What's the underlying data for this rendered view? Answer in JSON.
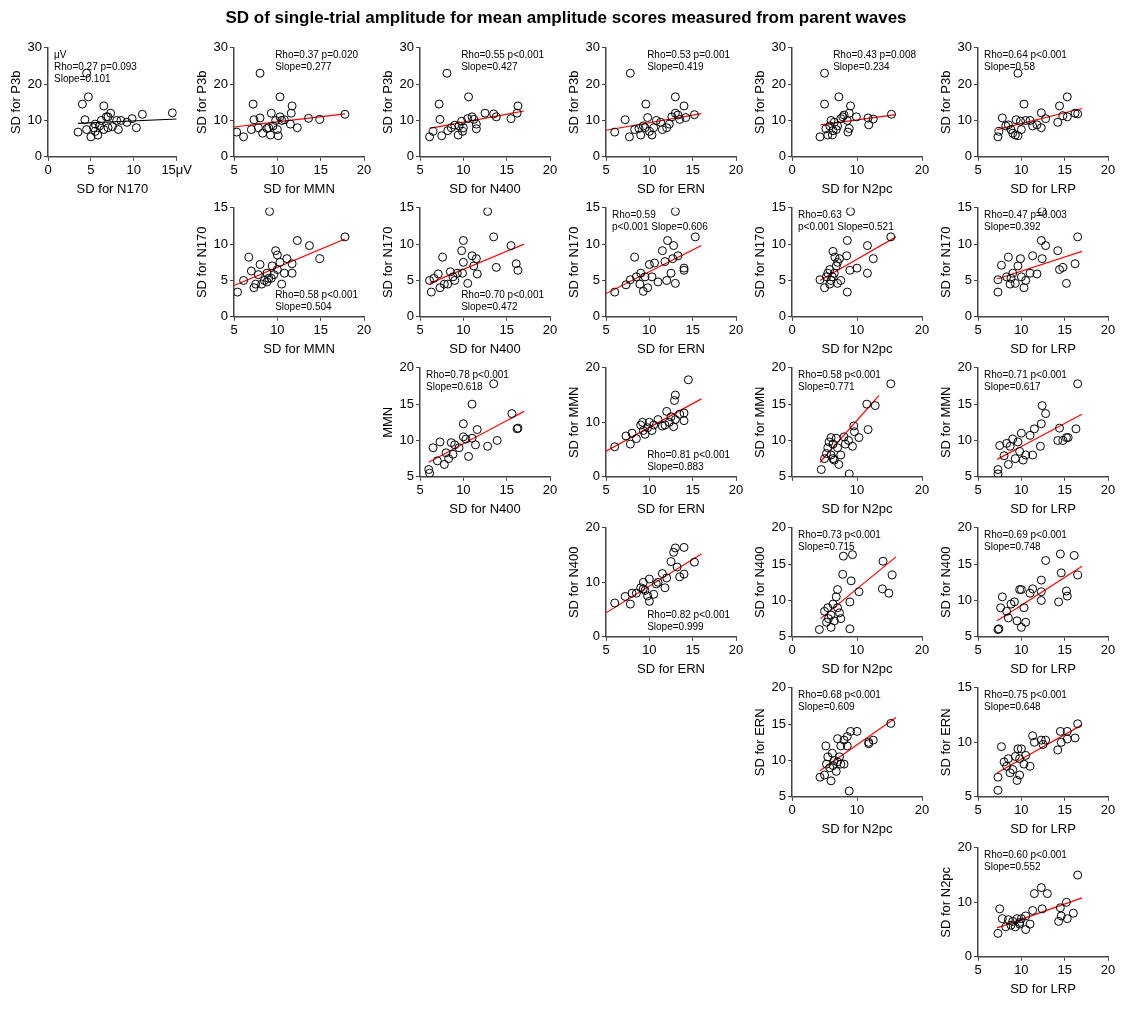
{
  "chart_data": [
    {
      "type": "scatter",
      "xlabel": "SD for N170",
      "ylabel": "SD for P3b",
      "xlim": [
        0,
        15
      ],
      "xticks": [
        0,
        5,
        10,
        {
          "value": 15,
          "label": "15μV"
        }
      ],
      "ylim": [
        0,
        30
      ],
      "yticks": [
        0,
        10,
        20,
        30
      ],
      "annotations": [
        "μV",
        "Rho=0.27 p=0.093",
        "Slope=0.101"
      ],
      "series": [
        {
          "color": "#000000",
          "marker": "circle",
          "x": [
            4.5,
            4.7,
            4,
            6.5,
            4.3,
            3.5,
            4.5,
            5,
            5.3,
            5.5,
            5.8,
            6,
            6.2,
            6.8,
            7,
            7.3,
            7,
            7.5,
            8,
            8.2,
            8.5,
            9.2,
            9.8,
            10.3,
            11,
            14.5,
            5.5,
            6.5
          ],
          "values": [
            23,
            16.5,
            14.5,
            14,
            10.2,
            6.8,
            7.5,
            5.5,
            8,
            7,
            6,
            8.5,
            10,
            11,
            11,
            12,
            8,
            8.3,
            10,
            7.5,
            10,
            9.5,
            10.5,
            8,
            11.7,
            12.1,
            9,
            7.5
          ]
        },
        {
          "type": "line",
          "color": "#000000",
          "x": [
            3.5,
            15
          ],
          "values": [
            9.2,
            10.4
          ]
        }
      ]
    },
    {
      "type": "scatter",
      "xlabel": "SD for MMN",
      "ylabel": "SD for P3b",
      "xlim": [
        5,
        20
      ],
      "xticks": [
        5,
        10,
        15,
        20
      ],
      "ylim": [
        0,
        30
      ],
      "yticks": [
        0,
        10,
        20,
        30
      ],
      "annotations": [
        "Rho=0.37 p=0.020",
        "Slope=0.277"
      ],
      "series": [
        {
          "color": "#000000",
          "marker": "circle",
          "x": [
            8,
            7.2,
            10.3,
            11.7,
            11.6,
            9.3,
            5.3,
            6.1,
            7,
            7.3,
            7.8,
            8,
            8.3,
            8.8,
            9.2,
            9.5,
            9.8,
            10,
            10.1,
            10.3,
            10.5,
            10.8,
            11.5,
            12.3,
            13.6,
            14.9,
            17.8,
            9
          ],
          "values": [
            23,
            14.5,
            16.5,
            14,
            12,
            12,
            6.8,
            5.5,
            7.5,
            10.2,
            8,
            10.7,
            6.5,
            7.8,
            6,
            8.5,
            10,
            7.5,
            5.8,
            11,
            10,
            10.2,
            9,
            8,
            10.6,
            10.3,
            11.7,
            8
          ]
        },
        {
          "type": "line",
          "color": "#ff0000",
          "x": [
            5,
            17.8
          ],
          "values": [
            8.2,
            11.8
          ]
        }
      ]
    },
    {
      "type": "scatter",
      "xlabel": "SD for N400",
      "ylabel": "SD for P3b",
      "xlim": [
        5,
        20
      ],
      "xticks": [
        5,
        10,
        15,
        20
      ],
      "ylim": [
        0,
        30
      ],
      "yticks": [
        0,
        10,
        20,
        30
      ],
      "annotations": [
        "Rho=0.55 p<0.001",
        "Slope=0.427"
      ],
      "series": [
        {
          "color": "#000000",
          "marker": "circle",
          "x": [
            8.1,
            7.2,
            10.6,
            6.1,
            6.5,
            7.3,
            7.5,
            8.2,
            8.6,
            9,
            9.4,
            9.8,
            9.9,
            10,
            10.5,
            11,
            11.2,
            11.5,
            11.5,
            12.5,
            13.5,
            13.8,
            15.5,
            16.2,
            16.3,
            9.5
          ],
          "values": [
            23,
            14.5,
            16.5,
            5.5,
            7,
            10.3,
            5.8,
            7.2,
            8,
            8.7,
            6,
            9.8,
            7,
            8,
            10.5,
            11,
            10.3,
            9,
            7.7,
            12,
            11.8,
            11,
            10.5,
            12,
            14,
            8.5
          ]
        },
        {
          "type": "line",
          "color": "#ff0000",
          "x": [
            6.1,
            17
          ],
          "values": [
            7.8,
            12.6
          ]
        }
      ]
    },
    {
      "type": "scatter",
      "title": "SD of single-trial amplitude for mean amplitude scores measured from parent waves",
      "xlabel": "SD for ERN",
      "ylabel": "SD for P3b",
      "xlim": [
        5,
        20
      ],
      "xticks": [
        5,
        10,
        15,
        20
      ],
      "ylim": [
        0,
        30
      ],
      "yticks": [
        0,
        10,
        20,
        30
      ],
      "annotations": [
        "Rho=0.53 p=0.001",
        "Slope=0.419"
      ],
      "series": [
        {
          "color": "#000000",
          "marker": "circle",
          "x": [
            7.8,
            9.6,
            13,
            14,
            6,
            7.2,
            7.7,
            8.3,
            8.8,
            9,
            9.3,
            9.8,
            10,
            10.3,
            10.5,
            10.8,
            11.3,
            11.5,
            12,
            12.3,
            12.6,
            13,
            13.3,
            13.5,
            14.2,
            15.2,
            9.5
          ],
          "values": [
            23,
            14.5,
            16.5,
            14,
            6.8,
            10.2,
            5.5,
            7.5,
            7.8,
            6,
            8.5,
            10.8,
            7,
            6,
            8,
            10,
            9.5,
            7.5,
            8,
            9,
            11,
            12,
            11.5,
            10.3,
            10.8,
            11.6,
            8
          ]
        },
        {
          "type": "line",
          "color": "#ff0000",
          "x": [
            5,
            16
          ],
          "values": [
            7.3,
            11.9
          ]
        }
      ]
    },
    {
      "type": "scatter",
      "xlabel": "SD for N2pc",
      "ylabel": "SD for P3b",
      "xlim": [
        0,
        20
      ],
      "xticks": [
        0,
        10,
        20
      ],
      "ylim": [
        0,
        30
      ],
      "yticks": [
        0,
        10,
        20,
        30
      ],
      "annotations": [
        "Rho=0.43 p=0.008",
        "Slope=0.234"
      ],
      "series": [
        {
          "color": "#000000",
          "marker": "circle",
          "x": [
            5,
            5,
            7.2,
            9,
            8.8,
            4.3,
            5.2,
            5.5,
            5.8,
            6,
            6.2,
            6.5,
            6.8,
            7,
            7.5,
            7.8,
            8,
            8.5,
            8.8,
            8.6,
            9.9,
            11.7,
            11.8,
            12.5,
            15.3,
            6.3
          ],
          "values": [
            23,
            14.5,
            16.5,
            14,
            12,
            5.5,
            7.7,
            6,
            8.5,
            10,
            6,
            9.5,
            7.5,
            8.5,
            10.5,
            11,
            11.5,
            10,
            7.8,
            6.8,
            11,
            10.7,
            8.8,
            10.4,
            11.7,
            7.2
          ]
        },
        {
          "type": "line",
          "color": "#ff0000",
          "x": [
            4.4,
            16
          ],
          "values": [
            8.8,
            11.6
          ]
        }
      ]
    },
    {
      "type": "scatter",
      "xlabel": "SD for LRP",
      "ylabel": "SD for P3b",
      "xlim": [
        5,
        20
      ],
      "xticks": [
        5,
        10,
        15,
        20
      ],
      "ylim": [
        0,
        30
      ],
      "yticks": [
        0,
        10,
        20,
        30
      ],
      "annotations": [
        "Rho=0.64 p<0.001",
        "Slope=0.58"
      ],
      "series": [
        {
          "color": "#000000",
          "marker": "circle",
          "x": [
            9.6,
            10.3,
            15.3,
            14.4,
            7.3,
            7.4,
            7.8,
            8.2,
            8.5,
            8.8,
            9,
            9.3,
            9.4,
            9.6,
            9.9,
            10,
            10.5,
            11,
            11.3,
            11.8,
            12.3,
            12.3,
            12.8,
            14.2,
            14.8,
            15.3,
            16.2,
            16.5
          ],
          "values": [
            23,
            14.5,
            16.5,
            14,
            5.5,
            7,
            10.7,
            8.5,
            8.8,
            7.5,
            6.5,
            6,
            10.2,
            5.8,
            9.8,
            7.5,
            10,
            10,
            8.5,
            8.8,
            12.1,
            8,
            10.5,
            9.5,
            11.3,
            11,
            12,
            11.8
          ]
        },
        {
          "type": "line",
          "color": "#ff0000",
          "x": [
            7.2,
            17
          ],
          "values": [
            7.5,
            13.3
          ]
        }
      ]
    },
    {
      "type": "scatter",
      "xlabel": "SD for MMN",
      "ylabel": "SD for N170",
      "xlim": [
        5,
        20
      ],
      "xticks": [
        5,
        10,
        15,
        20
      ],
      "ylim": [
        0,
        15
      ],
      "yticks": [
        0,
        5,
        10,
        15
      ],
      "annotations": [
        "Rho=0.58 p<0.001",
        "Slope=0.504"
      ],
      "series": [
        {
          "color": "#000000",
          "marker": "circle",
          "x": [
            9.1,
            5.4,
            6.1,
            6.7,
            7,
            7.3,
            7.5,
            7.8,
            8,
            8.2,
            8.5,
            8.8,
            9,
            9.3,
            9.4,
            9.6,
            9.8,
            10,
            10,
            10.3,
            10.5,
            10.8,
            11.1,
            11.7,
            11.7,
            12.3,
            13.7,
            14.9,
            17.8,
            8.8
          ],
          "values": [
            14.5,
            3.4,
            5,
            8.2,
            6.3,
            4,
            4.5,
            5.8,
            7.2,
            4.5,
            5,
            4.8,
            5.3,
            5.3,
            7,
            5.8,
            9.1,
            6.5,
            8.5,
            7.5,
            4.5,
            6,
            8,
            6,
            7.3,
            10.5,
            9.8,
            8,
            11,
            6
          ]
        },
        {
          "type": "line",
          "color": "#ff0000",
          "x": [
            5,
            17.8
          ],
          "values": [
            4.3,
            10.7
          ]
        }
      ]
    },
    {
      "type": "scatter",
      "xlabel": "SD for N400",
      "ylabel": "SD for N170",
      "xlim": [
        5,
        20
      ],
      "xticks": [
        5,
        10,
        15,
        20
      ],
      "ylim": [
        0,
        15
      ],
      "yticks": [
        0,
        5,
        10,
        15
      ],
      "annotations": [
        "Rho=0.70 p<0.001",
        "Slope=0.472"
      ],
      "series": [
        {
          "color": "#000000",
          "marker": "circle",
          "x": [
            12.8,
            6.1,
            6.3,
            6.6,
            7.1,
            7.3,
            7.6,
            7.8,
            8.2,
            8.5,
            8.8,
            9,
            9.3,
            9.8,
            9.9,
            10,
            10,
            10.5,
            11,
            11.2,
            11.5,
            11.6,
            13.5,
            13.8,
            15.5,
            16.1,
            16.3
          ],
          "values": [
            14.5,
            5,
            3.4,
            5.3,
            5.9,
            4,
            8.2,
            4.5,
            4.5,
            6.2,
            5.5,
            5,
            6,
            9.1,
            6,
            10.5,
            7.5,
            4.6,
            8.4,
            7,
            8,
            5.9,
            11,
            6.8,
            9.8,
            7.3,
            6.4
          ]
        },
        {
          "type": "line",
          "color": "#ff0000",
          "x": [
            6.1,
            17
          ],
          "values": [
            4.6,
            10
          ]
        }
      ]
    },
    {
      "type": "scatter",
      "xlabel": "SD for ERN",
      "ylabel": "SD for N170",
      "xlim": [
        5,
        20
      ],
      "xticks": [
        5,
        10,
        15,
        20
      ],
      "ylim": [
        0,
        15
      ],
      "yticks": [
        0,
        5,
        10,
        15
      ],
      "annotations": [
        "Rho=0.59",
        "p<0.001 Slope=0.606"
      ],
      "series": [
        {
          "color": "#000000",
          "marker": "circle",
          "x": [
            13,
            6,
            7.3,
            7.8,
            8.3,
            8.5,
            8.9,
            9,
            9.3,
            9.5,
            9.8,
            10,
            10.3,
            10.6,
            11,
            11.5,
            12,
            12.1,
            12.5,
            12.8,
            12.7,
            13,
            13.3,
            14,
            14,
            15.3,
            11.8
          ],
          "values": [
            14.5,
            3.4,
            4.4,
            5.1,
            8.2,
            5.5,
            4.5,
            6,
            3.5,
            5.5,
            4,
            7.2,
            5.5,
            7.4,
            4.8,
            9.1,
            5,
            10.5,
            6,
            9.8,
            8,
            4.6,
            8.4,
            6.7,
            6.4,
            11,
            7.6
          ]
        },
        {
          "type": "line",
          "color": "#ff0000",
          "x": [
            5,
            16
          ],
          "values": [
            3.2,
            9.8
          ]
        }
      ]
    },
    {
      "type": "scatter",
      "xlabel": "SD for N2pc",
      "ylabel": "SD for N170",
      "xlim": [
        0,
        20
      ],
      "xticks": [
        0,
        10,
        20
      ],
      "ylim": [
        0,
        15
      ],
      "yticks": [
        0,
        5,
        10,
        15
      ],
      "annotations": [
        "Rho=0.63",
        "p<0.001 Slope=0.521"
      ],
      "series": [
        {
          "color": "#000000",
          "marker": "circle",
          "x": [
            9,
            4.3,
            5,
            5.3,
            5.5,
            5.8,
            5.8,
            6,
            6.3,
            6.5,
            6.6,
            7,
            7,
            7.3,
            7.5,
            8.5,
            8.4,
            8.5,
            8.9,
            10,
            11.6,
            11.6,
            12.5,
            15.2,
            6.2,
            6.8
          ],
          "values": [
            14.5,
            5.1,
            4,
            5.5,
            6,
            4.5,
            6.5,
            5,
            9,
            6,
            8.2,
            7.5,
            4.6,
            8,
            5,
            10.5,
            8.4,
            3.4,
            6.4,
            6.7,
            9.8,
            6,
            8,
            11,
            5.5,
            7
          ]
        },
        {
          "type": "line",
          "color": "#ff0000",
          "x": [
            4.3,
            16
          ],
          "values": [
            5,
            11
          ]
        }
      ]
    },
    {
      "type": "scatter",
      "xlabel": "SD for LRP",
      "ylabel": "SD for N170",
      "xlim": [
        5,
        20
      ],
      "xticks": [
        5,
        10,
        15,
        20
      ],
      "ylim": [
        0,
        15
      ],
      "yticks": [
        0,
        5,
        10,
        15
      ],
      "annotations": [
        "Rho=0.47 p=0.003",
        "Slope=0.392"
      ],
      "series": [
        {
          "color": "#000000",
          "marker": "circle",
          "x": [
            12.4,
            7.3,
            7.3,
            7.7,
            8.3,
            8.5,
            8.7,
            9,
            9.3,
            9.6,
            9.9,
            10,
            10.3,
            10.5,
            11,
            11.3,
            11.8,
            12.3,
            12.4,
            12.8,
            14.2,
            14.4,
            14.8,
            15.2,
            16.2,
            16.5,
            8.8
          ],
          "values": [
            14.5,
            3.4,
            5.1,
            7.1,
            5.5,
            8.2,
            4.5,
            6,
            4.6,
            7,
            8,
            5.5,
            4,
            5,
            6,
            8.4,
            5.9,
            10.5,
            8,
            9.8,
            9.1,
            6.5,
            6.8,
            4.6,
            7.3,
            11,
            5.3
          ]
        },
        {
          "type": "line",
          "color": "#ff0000",
          "x": [
            7.2,
            17
          ],
          "values": [
            5.2,
            9
          ]
        }
      ]
    },
    {
      "type": "scatter",
      "xlabel": "SD for N400",
      "ylabel": "MMN",
      "xlim": [
        5,
        20
      ],
      "xticks": [
        5,
        10,
        15,
        20
      ],
      "ylim": [
        5,
        20
      ],
      "yticks": [
        5,
        10,
        15,
        20
      ],
      "annotations": [
        "Rho=0.78 p<0.001",
        "Slope=0.618"
      ],
      "series": [
        {
          "color": "#000000",
          "marker": "circle",
          "x": [
            13.5,
            11,
            6,
            6.1,
            6.5,
            7,
            7.3,
            7.8,
            8,
            8.3,
            8.6,
            8.8,
            9,
            9.5,
            10,
            10,
            10.3,
            10.6,
            11,
            11.4,
            11.6,
            12.8,
            13.9,
            15.6,
            16.2,
            16.3
          ],
          "values": [
            17.8,
            15,
            6,
            5.5,
            9,
            7.2,
            9.8,
            6.7,
            8.3,
            7.5,
            9.7,
            8.1,
            9.4,
            9,
            12.3,
            10.5,
            10.2,
            7.8,
            10.3,
            9.4,
            11.5,
            9.2,
            10,
            13.7,
            11.6,
            11.7
          ]
        },
        {
          "type": "line",
          "color": "#ff0000",
          "x": [
            6,
            17
          ],
          "values": [
            7,
            14
          ]
        }
      ]
    },
    {
      "type": "scatter",
      "xlabel": "SD for ERN",
      "ylabel": "SD for MMN",
      "xlim": [
        5,
        20
      ],
      "xticks": [
        5,
        10,
        15,
        20
      ],
      "ylim": [
        0,
        20
      ],
      "yticks": [
        0,
        10,
        20
      ],
      "annotations": [
        "Rho=0.81 p<0.001",
        "Slope=0.883"
      ],
      "series": [
        {
          "color": "#000000",
          "marker": "circle",
          "x": [
            14.5,
            13,
            12.9,
            6,
            7.3,
            7.8,
            8,
            8.5,
            9,
            9.2,
            9.3,
            9.5,
            9.8,
            10,
            10.3,
            10.5,
            11,
            11.5,
            12,
            12.3,
            12.5,
            12.8,
            13,
            13.5,
            14,
            14,
            11.8
          ],
          "values": [
            17.8,
            15,
            14,
            5.5,
            7.5,
            6,
            8,
            7,
            9.5,
            10,
            8.5,
            7.8,
            9,
            10,
            8.5,
            9.5,
            10.5,
            9.3,
            12,
            10,
            11,
            9.2,
            10.5,
            11.5,
            10.3,
            11.7,
            9.5
          ]
        },
        {
          "type": "line",
          "color": "#ff0000",
          "x": [
            5,
            16
          ],
          "values": [
            4.7,
            14.3
          ]
        }
      ]
    },
    {
      "type": "scatter",
      "xlabel": "SD for N2pc",
      "ylabel": "SD for MMN",
      "xlim": [
        0,
        20
      ],
      "xticks": [
        {
          "value": 0,
          "label": null
        },
        10,
        20
      ],
      "ylim": [
        5,
        20
      ],
      "yticks": [
        5,
        10,
        15,
        20
      ],
      "annotations": [
        "Rho=0.58 p<0.001",
        "Slope=0.771"
      ],
      "series": [
        {
          "color": "#000000",
          "marker": "circle",
          "x": [
            15.2,
            11.5,
            12.8,
            11.7,
            9.5,
            9.6,
            4.5,
            5,
            5.3,
            5.5,
            5.7,
            6,
            6,
            6.3,
            6.5,
            6.8,
            7,
            7.2,
            7.5,
            8,
            8.2,
            8.7,
            9.3,
            8.8,
            10.3,
            6.3
          ],
          "values": [
            17.8,
            15,
            14.8,
            11.5,
            12,
            11.2,
            6,
            7.5,
            8.2,
            9,
            9.8,
            10.4,
            8,
            9.5,
            7.3,
            10.3,
            9,
            6.7,
            8,
            10.5,
            9.5,
            10,
            9.2,
            5.4,
            10.4,
            7.5
          ]
        },
        {
          "type": "line",
          "color": "#ff0000",
          "x": [
            4.3,
            13.4
          ],
          "values": [
            7,
            16.2
          ]
        }
      ]
    },
    {
      "type": "scatter",
      "xlabel": "SD for LRP",
      "ylabel": "SD for MMN",
      "xlim": [
        5,
        20
      ],
      "xticks": [
        5,
        10,
        15,
        20
      ],
      "ylim": [
        5,
        20
      ],
      "yticks": [
        5,
        10,
        15,
        20
      ],
      "annotations": [
        "Rho=0.71 p<0.001",
        "Slope=0.617"
      ],
      "series": [
        {
          "color": "#000000",
          "marker": "circle",
          "x": [
            16.5,
            12.4,
            12.8,
            12.3,
            11.5,
            10,
            7.3,
            7.3,
            7.5,
            8,
            8.3,
            8.5,
            8.7,
            9,
            9.3,
            9.6,
            9.8,
            10.2,
            10.5,
            11,
            11.3,
            12.2,
            14.2,
            14.4,
            14.8,
            15.2,
            15.4,
            16.3
          ],
          "values": [
            17.8,
            14.8,
            13.7,
            12.3,
            11.6,
            11,
            6,
            5.4,
            9.3,
            7.9,
            9.6,
            6.7,
            9.2,
            10.2,
            7.5,
            9.8,
            8.5,
            7.3,
            8,
            10.7,
            8,
            9.2,
            10,
            11.7,
            10,
            10.4,
            10.4,
            11.6
          ]
        },
        {
          "type": "line",
          "color": "#ff0000",
          "x": [
            7.2,
            17
          ],
          "values": [
            7.4,
            13.6
          ]
        }
      ]
    },
    {
      "type": "scatter",
      "xlabel": "SD for ERN",
      "ylabel": "SD for N400",
      "xlim": [
        5,
        20
      ],
      "xticks": [
        5,
        10,
        15,
        20
      ],
      "ylim": [
        0,
        20
      ],
      "yticks": [
        0,
        10,
        20
      ],
      "annotations": [
        "Rho=0.82 p<0.001",
        "Slope=0.999"
      ],
      "series": [
        {
          "color": "#000000",
          "marker": "circle",
          "x": [
            6,
            7.2,
            7.8,
            8,
            8.5,
            9,
            9.3,
            9.5,
            9.8,
            10,
            10,
            10.5,
            10.8,
            11,
            11.5,
            11.8,
            12,
            12.5,
            12.8,
            13,
            13.2,
            13.5,
            14,
            14,
            15.2,
            9.3
          ],
          "values": [
            6.2,
            7.4,
            6,
            8,
            8,
            9,
            10,
            8.5,
            7.5,
            10.6,
            6.5,
            7.8,
            9.7,
            10,
            11.6,
            9,
            10.8,
            13.8,
            15.5,
            16.3,
            12.8,
            11,
            16.4,
            11.5,
            13.7,
            8.8
          ]
        },
        {
          "type": "line",
          "color": "#ff0000",
          "x": [
            5,
            16
          ],
          "values": [
            4.4,
            15.2
          ]
        }
      ]
    },
    {
      "type": "scatter",
      "xlabel": "SD for N2pc",
      "ylabel": "SD for N400",
      "xlim": [
        0,
        20
      ],
      "xticks": [
        0,
        10,
        20
      ],
      "ylim": [
        5,
        20
      ],
      "yticks": [
        5,
        10,
        15,
        20
      ],
      "annotations": [
        "Rho=0.73 p<0.001",
        "Slope=0.715"
      ],
      "series": [
        {
          "color": "#000000",
          "marker": "circle",
          "x": [
            7.9,
            9.3,
            14,
            7.8,
            9.1,
            10.3,
            13.9,
            14.9,
            15.4,
            8.9,
            8.9,
            4.2,
            5,
            5.5,
            5.6,
            6,
            6,
            6.3,
            6.5,
            6.8,
            7,
            7,
            7.3,
            7.5,
            5.3
          ],
          "values": [
            16.1,
            16.3,
            15.4,
            13.6,
            12.7,
            11.2,
            11.6,
            11,
            13.5,
            9.8,
            6.1,
            6,
            8.5,
            9,
            7.5,
            8,
            6.3,
            9.5,
            7.2,
            10.5,
            11.5,
            9,
            8.3,
            7.5,
            7
          ]
        },
        {
          "type": "line",
          "color": "#ff0000",
          "x": [
            4.4,
            16
          ],
          "values": [
            7.5,
            16
          ]
        }
      ]
    },
    {
      "type": "scatter",
      "xlabel": "SD for LRP",
      "ylabel": "SD for N400",
      "xlim": [
        5,
        20
      ],
      "xticks": [
        5,
        10,
        15,
        20
      ],
      "ylim": [
        5,
        20
      ],
      "yticks": [
        5,
        10,
        15,
        20
      ],
      "annotations": [
        "Rho=0.69 p<0.001",
        "Slope=0.748"
      ],
      "series": [
        {
          "color": "#000000",
          "marker": "circle",
          "x": [
            14.5,
            16.1,
            12.8,
            14.6,
            16.5,
            12.3,
            11.3,
            11,
            12.3,
            14.3,
            15.2,
            15.3,
            7.3,
            7.4,
            7.6,
            7.8,
            8.3,
            8.5,
            8.8,
            9.2,
            9.5,
            9.8,
            10,
            10,
            10.3,
            10.5,
            12.3
          ],
          "values": [
            16.4,
            16.2,
            15.5,
            13.8,
            13.5,
            12.8,
            11.6,
            11,
            11.2,
            9.8,
            11.3,
            10.6,
            6,
            6.1,
            9,
            10.5,
            8.5,
            7.6,
            9.5,
            9.8,
            7.2,
            11.5,
            11.5,
            6.3,
            9,
            7,
            10
          ]
        },
        {
          "type": "line",
          "color": "#ff0000",
          "x": [
            7.2,
            17
          ],
          "values": [
            7.2,
            14.7
          ]
        }
      ]
    },
    {
      "type": "scatter",
      "xlabel": "SD for N2pc",
      "ylabel": "SD for ERN",
      "xlim": [
        0,
        20
      ],
      "xticks": [
        0,
        10,
        20
      ],
      "ylim": [
        5,
        20
      ],
      "yticks": [
        5,
        10,
        15,
        20
      ],
      "annotations": [
        "Rho=0.68 p<0.001",
        "Slope=0.609"
      ],
      "series": [
        {
          "color": "#000000",
          "marker": "circle",
          "x": [
            15.2,
            10,
            9,
            8.5,
            8,
            7,
            7.5,
            5.2,
            11.8,
            12.5,
            11.8,
            4.3,
            5,
            5.3,
            5.5,
            5.8,
            6,
            6.2,
            6.5,
            6.8,
            7,
            7.3,
            7.5,
            8,
            8.5,
            8.8,
            6.3
          ],
          "values": [
            15.1,
            14,
            14,
            13.3,
            12.8,
            13,
            12,
            12,
            12.5,
            12.8,
            12.3,
            7.7,
            8,
            9.5,
            10.5,
            9,
            7.2,
            11,
            10,
            8.5,
            9.8,
            10.5,
            9.5,
            9.5,
            12,
            5.8,
            9.3
          ]
        },
        {
          "type": "line",
          "color": "#ff0000",
          "x": [
            4.3,
            16
          ],
          "values": [
            8.6,
            15.9
          ]
        }
      ]
    },
    {
      "type": "scatter",
      "xlabel": "SD for LRP",
      "ylabel": "SD for ERN",
      "xlim": [
        5,
        20
      ],
      "xticks": [
        5,
        10,
        15,
        20
      ],
      "ylim": [
        5,
        15
      ],
      "yticks": [
        5,
        10,
        15
      ],
      "annotations": [
        "Rho=0.75 p<0.001",
        "Slope=0.648"
      ],
      "series": [
        {
          "color": "#000000",
          "marker": "circle",
          "x": [
            7.3,
            7.3,
            7.7,
            8,
            8.3,
            8.5,
            8.7,
            9,
            9.3,
            9.5,
            9.6,
            9.8,
            10,
            10.3,
            10.5,
            11,
            11.3,
            11.5,
            12.3,
            12.5,
            12.8,
            14.2,
            14.5,
            14.6,
            15.3,
            15.3,
            16.2,
            16.5,
            9.8
          ],
          "values": [
            5.6,
            6.8,
            9.6,
            8.2,
            7.8,
            8.5,
            7.2,
            7.5,
            8.7,
            6.5,
            9.4,
            7,
            9.4,
            8,
            8.8,
            7.8,
            10.6,
            10,
            10.2,
            9.8,
            10.2,
            9.3,
            11,
            10,
            11,
            10.3,
            10.4,
            11.7,
            8.5
          ]
        },
        {
          "type": "line",
          "color": "#ff0000",
          "x": [
            7.2,
            17
          ],
          "values": [
            7.2,
            11.6
          ]
        }
      ]
    },
    {
      "type": "scatter",
      "xlabel": "SD for LRP",
      "ylabel": "SD for N2pc",
      "xlim": [
        5,
        20
      ],
      "xticks": [
        5,
        10,
        15,
        20
      ],
      "ylim": [
        0,
        20
      ],
      "yticks": [
        0,
        10,
        20
      ],
      "annotations": [
        "Rho=0.60 p<0.001",
        "Slope=0.552"
      ],
      "series": [
        {
          "color": "#000000",
          "marker": "circle",
          "x": [
            7.3,
            7.5,
            7.8,
            8.2,
            8.5,
            8.8,
            9,
            9.3,
            9.5,
            9.8,
            10,
            10.5,
            10.5,
            11,
            11.3,
            11.5,
            12.3,
            12.4,
            13,
            14.3,
            14.5,
            14.6,
            15.2,
            15.3,
            16,
            16.5,
            9.8
          ],
          "values": [
            4.3,
            8.8,
            7,
            5.5,
            6.8,
            5.8,
            6.5,
            5.5,
            7,
            6,
            7,
            5,
            7.5,
            6,
            8.5,
            11.6,
            12.7,
            8.8,
            11.6,
            6.5,
            9,
            7.5,
            10,
            7,
            8,
            15,
            6.3
          ]
        },
        {
          "type": "line",
          "color": "#ff0000",
          "x": [
            7.2,
            17
          ],
          "values": [
            5.3,
            10.8
          ]
        }
      ]
    }
  ]
}
